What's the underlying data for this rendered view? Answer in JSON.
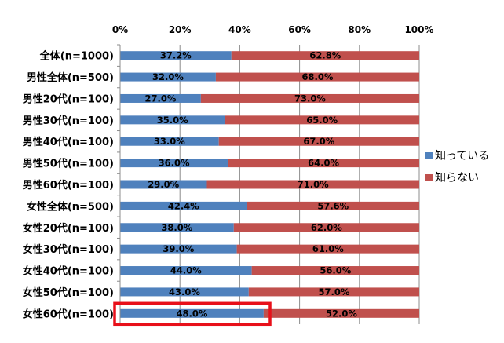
{
  "chart_data": {
    "type": "bar",
    "orientation": "horizontal",
    "stacked": "percent",
    "categories": [
      "全体(n=1000)",
      "男性全体(n=500)",
      "男性20代(n=100)",
      "男性30代(n=100)",
      "男性40代(n=100)",
      "男性50代(n=100)",
      "男性60代(n=100)",
      "女性全体(n=500)",
      "女性20代(n=100)",
      "女性30代(n=100)",
      "女性40代(n=100)",
      "女性50代(n=100)",
      "女性60代(n=100)"
    ],
    "series": [
      {
        "name": "知っている",
        "color": "#4F81BD",
        "values": [
          37.2,
          32.0,
          27.0,
          35.0,
          33.0,
          36.0,
          29.0,
          42.4,
          38.0,
          39.0,
          44.0,
          43.0,
          48.0
        ],
        "labels": [
          "37.2%",
          "32.0%",
          "27.0%",
          "35.0%",
          "33.0%",
          "36.0%",
          "29.0%",
          "42.4%",
          "38.0%",
          "39.0%",
          "44.0%",
          "43.0%",
          "48.0%"
        ]
      },
      {
        "name": "知らない",
        "color": "#C0504D",
        "values": [
          62.8,
          68.0,
          73.0,
          65.0,
          67.0,
          64.0,
          71.0,
          57.6,
          62.0,
          61.0,
          56.0,
          57.0,
          52.0
        ],
        "labels": [
          "62.8%",
          "68.0%",
          "73.0%",
          "65.0%",
          "67.0%",
          "64.0%",
          "71.0%",
          "57.6%",
          "62.0%",
          "61.0%",
          "56.0%",
          "57.0%",
          "52.0%"
        ]
      }
    ],
    "xlim": [
      0,
      100
    ],
    "xticks": [
      "0%",
      "20%",
      "40%",
      "60%",
      "80%",
      "100%"
    ],
    "x_axis_position": "top",
    "grid": true,
    "legend": "right",
    "highlight": {
      "category_index": 12,
      "color": "#E8101A"
    }
  }
}
